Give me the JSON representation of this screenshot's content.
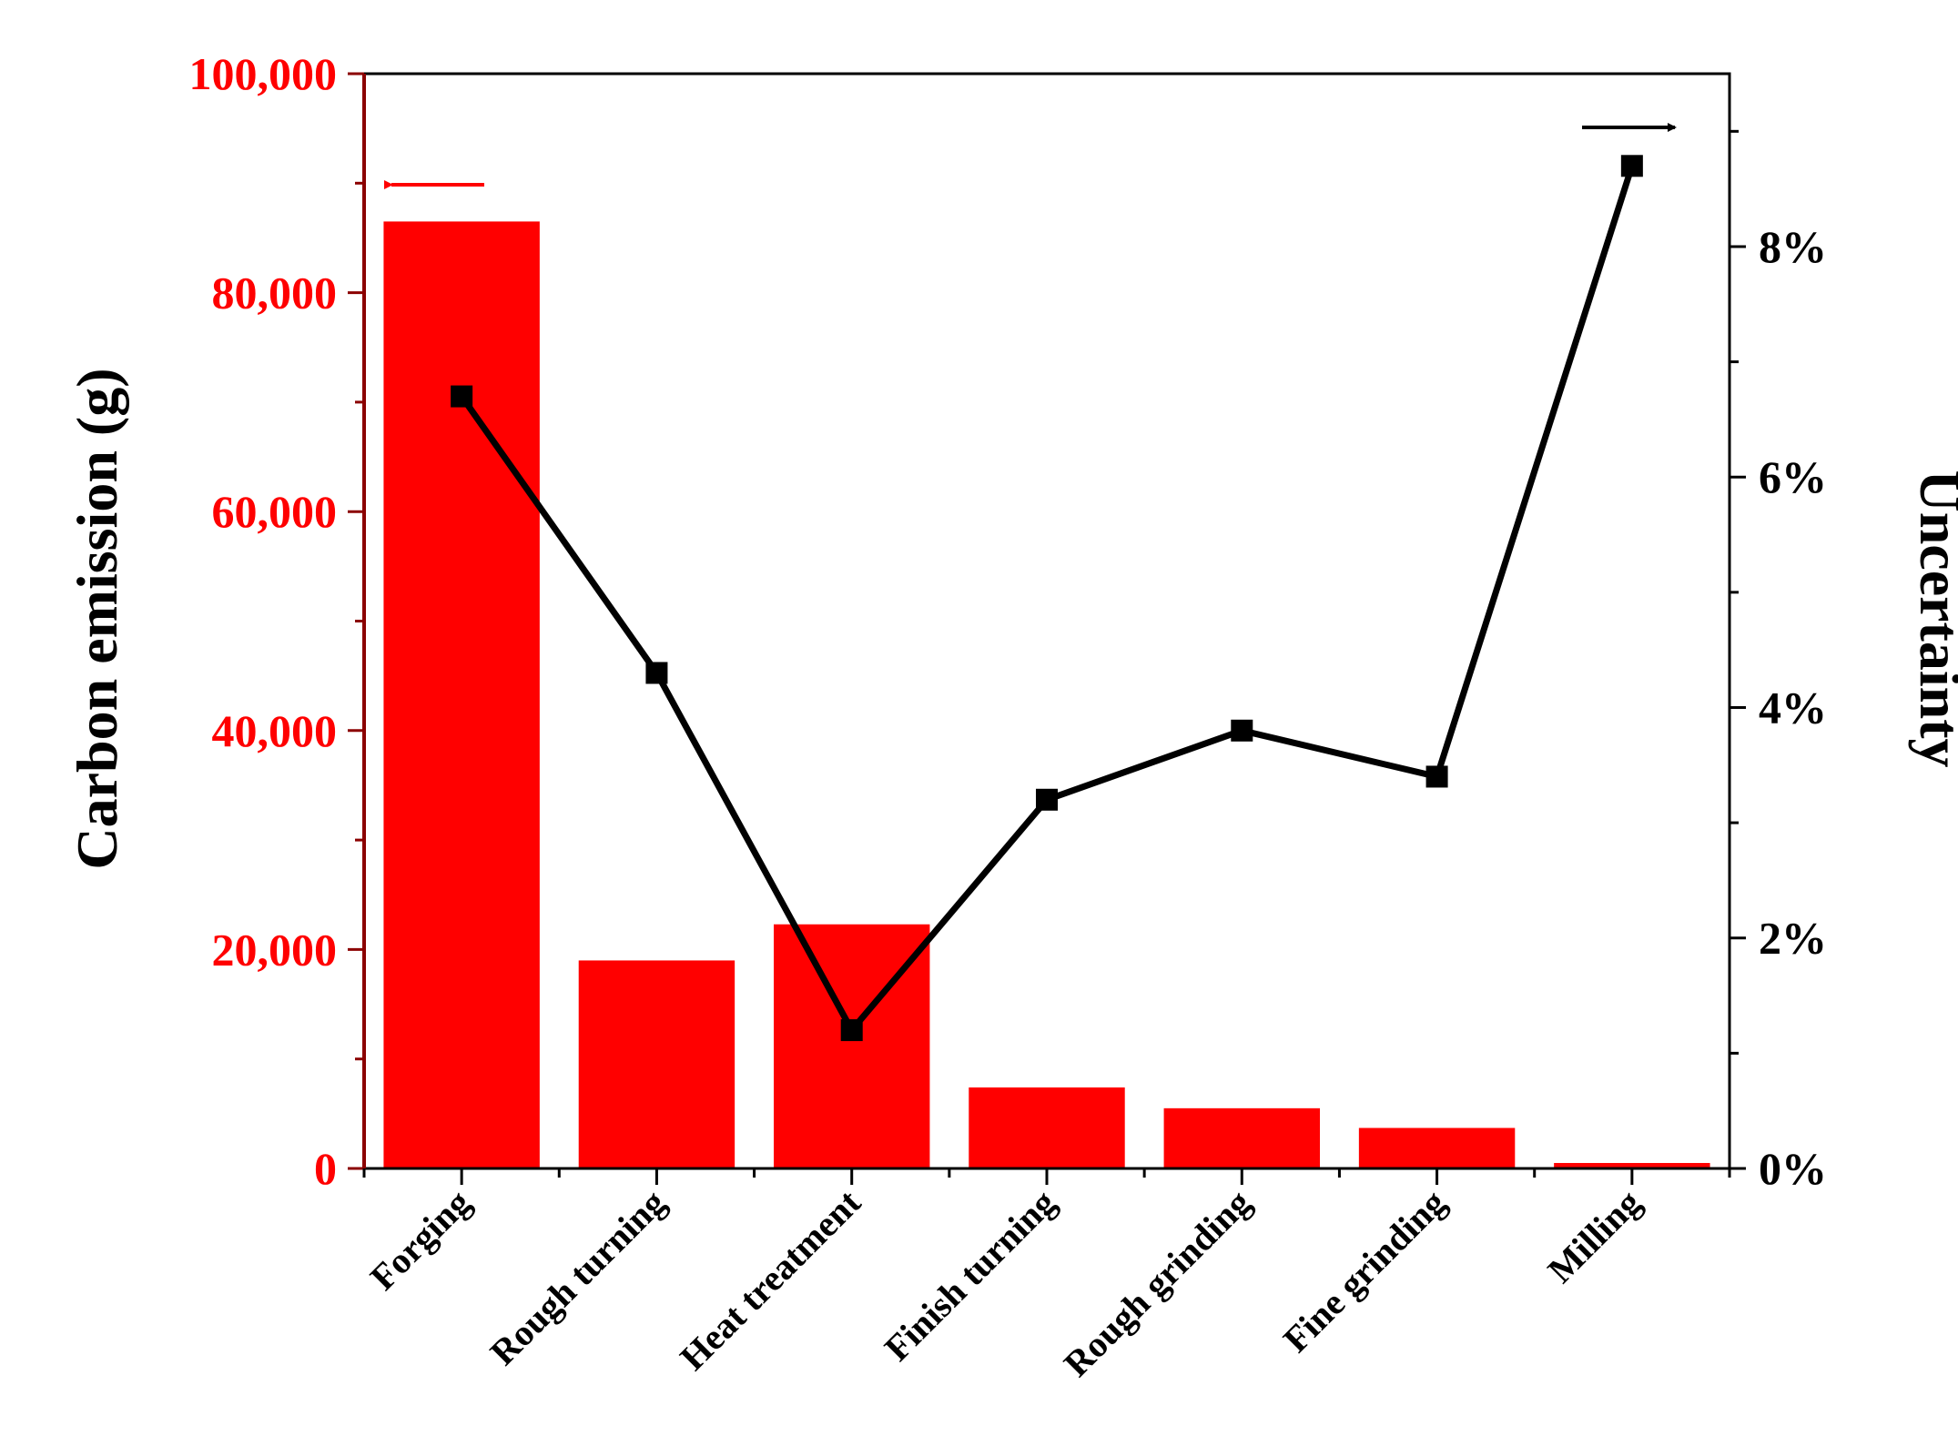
{
  "chart_data": {
    "type": "bar",
    "categories": [
      "Forging",
      "Rough turning",
      "Heat treatment",
      "Finish turning",
      "Rough grinding",
      "Fine grinding",
      "Milling"
    ],
    "series": [
      {
        "type": "bar",
        "axis": "left",
        "color": "#ff0000",
        "values": [
          86500,
          19000,
          22300,
          7400,
          5500,
          3700,
          500
        ]
      },
      {
        "type": "line",
        "axis": "right",
        "color": "#000000",
        "marker": "square",
        "values": [
          6.7,
          4.3,
          1.2,
          3.2,
          3.8,
          3.4,
          8.7
        ]
      }
    ],
    "ylabel": "Carbon emission (g)",
    "y2label": "Uncertainty",
    "ylim": [
      0,
      100000
    ],
    "yticks": [
      0,
      20000,
      40000,
      60000,
      80000,
      100000
    ],
    "ytick_labels": [
      "0",
      "20,000",
      "40,000",
      "60,000",
      "80,000",
      "100,000"
    ],
    "y2lim": [
      0,
      9.5
    ],
    "y2ticks": [
      0,
      2,
      4,
      6,
      8
    ],
    "y2tick_labels": [
      "0%",
      "2%",
      "4%",
      "6%",
      "8%"
    ],
    "left_axis_color": "#ff0000",
    "right_axis_color": "#000000",
    "grid": false,
    "legend": "none",
    "annotations": [
      {
        "type": "arrow",
        "direction": "left",
        "color": "#ff0000",
        "near": "Forging bar",
        "meaning": "bars use left axis"
      },
      {
        "type": "arrow",
        "direction": "right",
        "color": "#000000",
        "near": "Milling point",
        "meaning": "line uses right axis"
      }
    ]
  }
}
